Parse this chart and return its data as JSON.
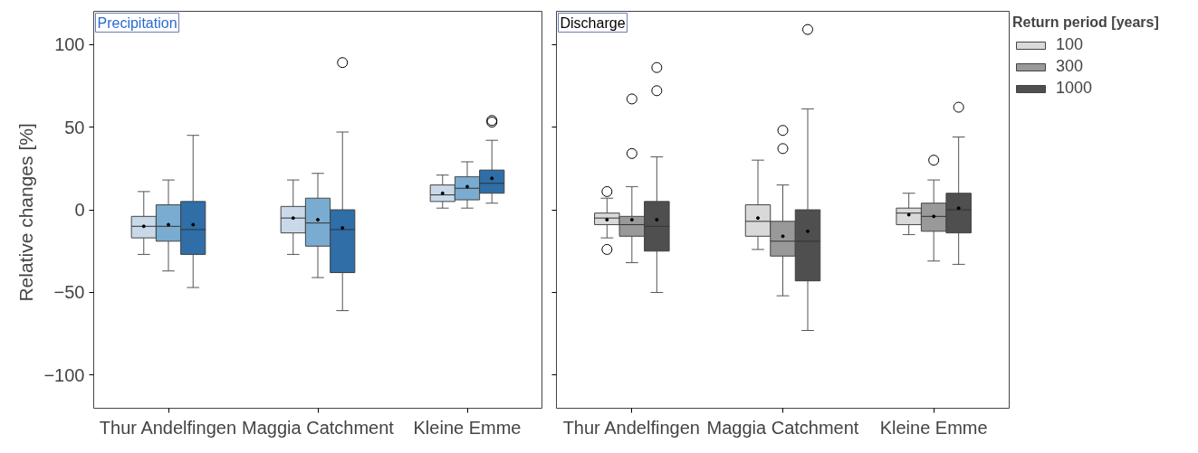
{
  "chart_data": [
    {
      "type": "box",
      "title": "Precipitation",
      "ylabel": "Relative changes  [%]",
      "categories": [
        "Thur Andelfingen",
        "Maggia Catchment",
        "Kleine Emme"
      ],
      "ylim": [
        -120,
        120
      ],
      "yticks": [
        -100,
        -50,
        0,
        50,
        100
      ],
      "grid": false,
      "marker": "circle",
      "series": [
        {
          "color": "#c9d9ea",
          "boxes": [
            {
              "low": -27,
              "q1": -17,
              "median": -10,
              "q3": -4,
              "high": 11,
              "mean": -10
            },
            {
              "low": -27,
              "q1": -14,
              "median": -5,
              "q3": 2,
              "high": 18,
              "mean": -5
            },
            {
              "low": 1,
              "q1": 5,
              "median": 9,
              "q3": 15,
              "high": 21,
              "mean": 10
            }
          ]
        },
        {
          "color": "#79acd0",
          "boxes": [
            {
              "low": -37,
              "q1": -19,
              "median": -10,
              "q3": 3,
              "high": 18,
              "mean": -9
            },
            {
              "low": -41,
              "q1": -22,
              "median": -8,
              "q3": 7,
              "high": 22,
              "mean": -6
            },
            {
              "low": 1,
              "q1": 6,
              "median": 13,
              "q3": 20,
              "high": 29,
              "mean": 14
            }
          ]
        },
        {
          "color": "#2f6ea6",
          "boxes": [
            {
              "low": -47,
              "q1": -27,
              "median": -12,
              "q3": 5,
              "high": 45,
              "mean": -9
            },
            {
              "low": -61,
              "q1": -38,
              "median": -12,
              "q3": 0,
              "high": 47,
              "mean": -11,
              "outliers": [
                89
              ]
            },
            {
              "low": 4,
              "q1": 10,
              "median": 16,
              "q3": 24,
              "high": 42,
              "mean": 19,
              "outliers": [
                54,
                53
              ]
            }
          ]
        }
      ]
    },
    {
      "type": "box",
      "title": "Discharge",
      "categories": [
        "Thur Andelfingen",
        "Maggia Catchment",
        "Kleine Emme"
      ],
      "ylim": [
        -120,
        120
      ],
      "yticks": [
        -100,
        -50,
        0,
        50,
        100
      ],
      "tick_labels": "x",
      "grid": false,
      "legend": "right",
      "legend_title": "Return period [years]",
      "marker": "circle",
      "series": [
        {
          "name": "100",
          "color": "#d9d9d9",
          "boxes": [
            {
              "low": -17,
              "q1": -9,
              "median": -5,
              "q3": -2,
              "high": 7,
              "mean": -6,
              "outliers": [
                11,
                -24
              ]
            },
            {
              "low": -24,
              "q1": -16,
              "median": -7,
              "q3": 3,
              "high": 30,
              "mean": -5
            },
            {
              "low": -15,
              "q1": -9,
              "median": -2,
              "q3": 1,
              "high": 10,
              "mean": -3
            }
          ]
        },
        {
          "name": "300",
          "color": "#999999",
          "boxes": [
            {
              "low": -32,
              "q1": -16,
              "median": -9,
              "q3": -4,
              "high": 14,
              "mean": -6,
              "outliers": [
                67,
                34
              ]
            },
            {
              "low": -52,
              "q1": -28,
              "median": -19,
              "q3": -7,
              "high": 15,
              "mean": -16,
              "outliers": [
                48,
                37
              ]
            },
            {
              "low": -31,
              "q1": -13,
              "median": -4,
              "q3": 4,
              "high": 18,
              "mean": -4,
              "outliers": [
                30
              ]
            }
          ]
        },
        {
          "name": "1000",
          "color": "#4f4f4f",
          "boxes": [
            {
              "low": -50,
              "q1": -25,
              "median": -10,
              "q3": 5,
              "high": 32,
              "mean": -6,
              "outliers": [
                86,
                72
              ]
            },
            {
              "low": -73,
              "q1": -43,
              "median": -19,
              "q3": 0,
              "high": 61,
              "mean": -13,
              "outliers": [
                109
              ]
            },
            {
              "low": -33,
              "q1": -14,
              "median": 0,
              "q3": 10,
              "high": 44,
              "mean": 1,
              "outliers": [
                62
              ]
            }
          ]
        }
      ]
    }
  ]
}
